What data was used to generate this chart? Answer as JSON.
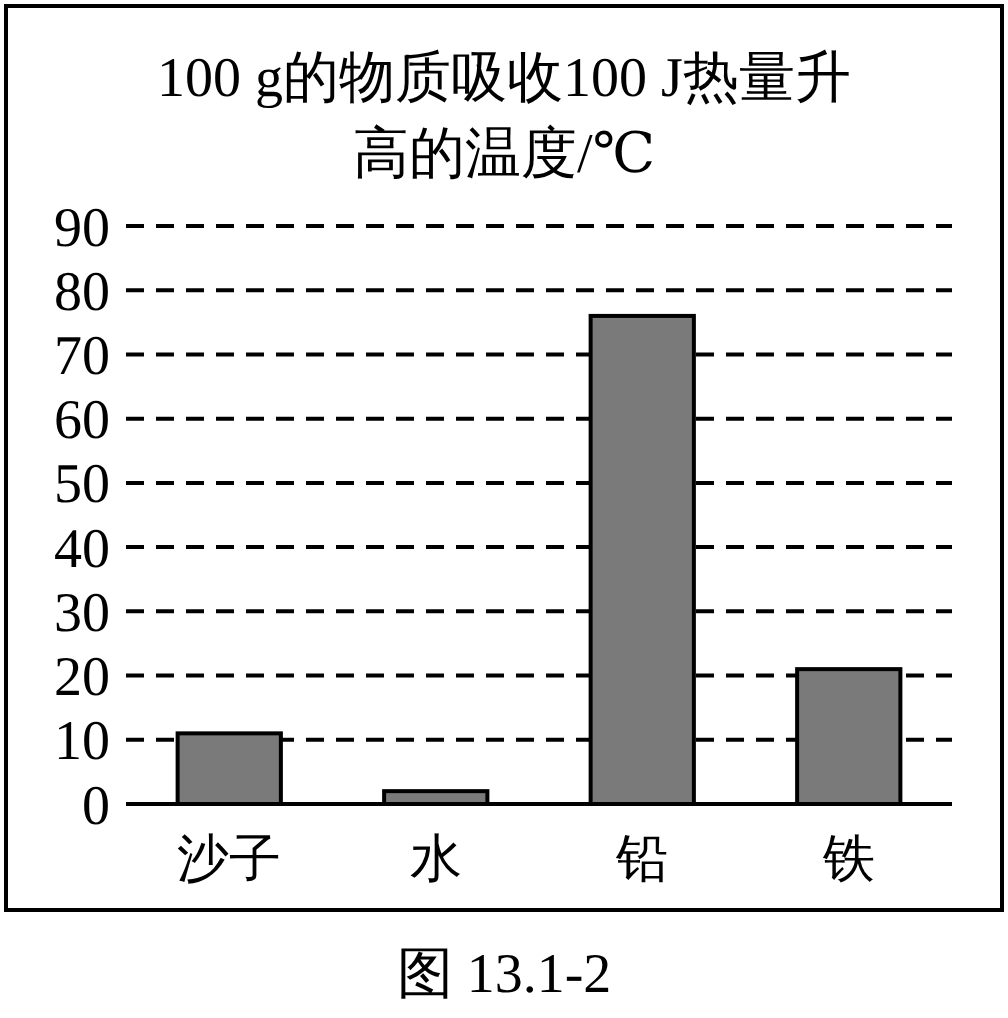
{
  "chart_data": {
    "type": "bar",
    "title": "100 g的物质吸收100 J热量升高的温度/℃",
    "categories": [
      "沙子",
      "水",
      "铅",
      "铁"
    ],
    "values": [
      11,
      2,
      76,
      21
    ],
    "color": "#7a7a7a",
    "ylim": [
      0,
      90
    ],
    "yticks": [
      0,
      10,
      20,
      30,
      40,
      50,
      60,
      70,
      80,
      90
    ],
    "grid": "y",
    "annotations": [
      "图 13.1-2"
    ]
  }
}
